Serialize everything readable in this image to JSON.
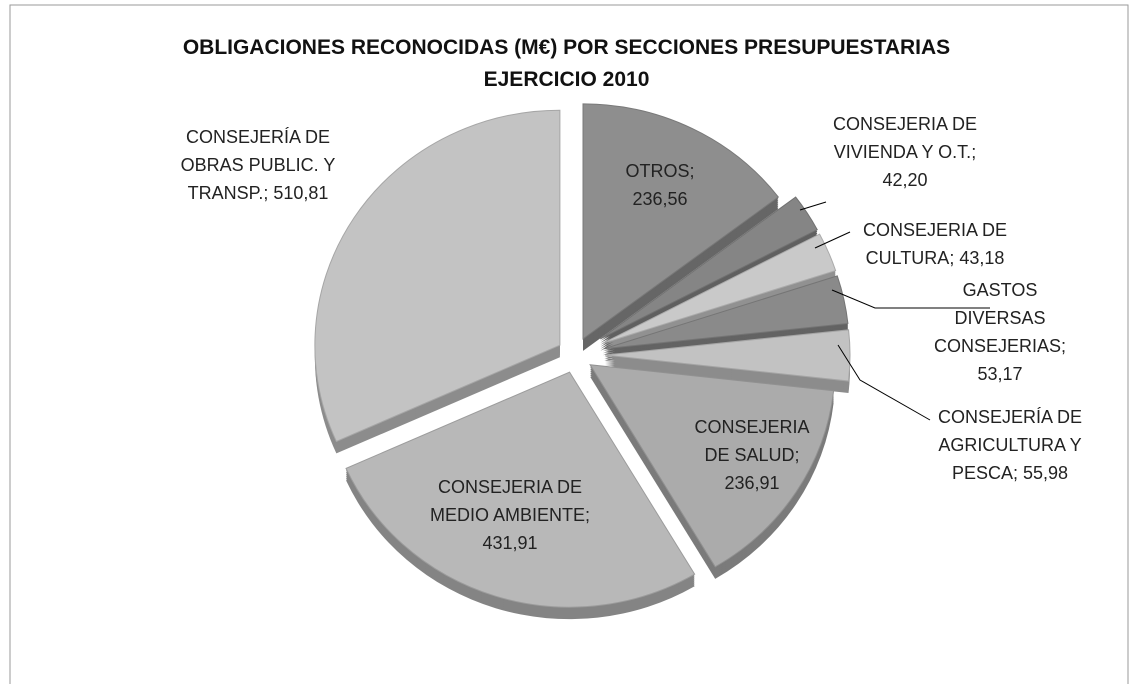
{
  "chart_data": {
    "type": "pie",
    "title": "OBLIGACIONES RECONOCIDAS (M€) POR SECCIONES PRESUPUESTARIAS\nEJERCICIO 2010",
    "values": [
      236.56,
      42.2,
      43.18,
      53.17,
      55.98,
      236.91,
      431.91,
      510.81
    ],
    "value_labels": [
      "OTROS; 236,56",
      "CONSEJERIA DE VIVIENDA Y O.T.; 42,20",
      "CONSEJERIA DE CULTURA; 43,18",
      "GASTOS DIVERSAS CONSEJERIAS; 53,17",
      "CONSEJERÍA DE AGRICULTURA Y PESCA; 55,98",
      "CONSEJERIA DE SALUD; 236,91",
      "CONSEJERIA DE MEDIO AMBIENTE; 431,91",
      "CONSEJERÍA DE OBRAS PUBLIC. Y TRANSP.; 510,81"
    ],
    "colors": [
      "#8e8e8e",
      "#858585",
      "#c9c9c9",
      "#8a8a8a",
      "#c2c2c2",
      "#ababab",
      "#b8b8b8",
      "#c3c3c3"
    ]
  }
}
